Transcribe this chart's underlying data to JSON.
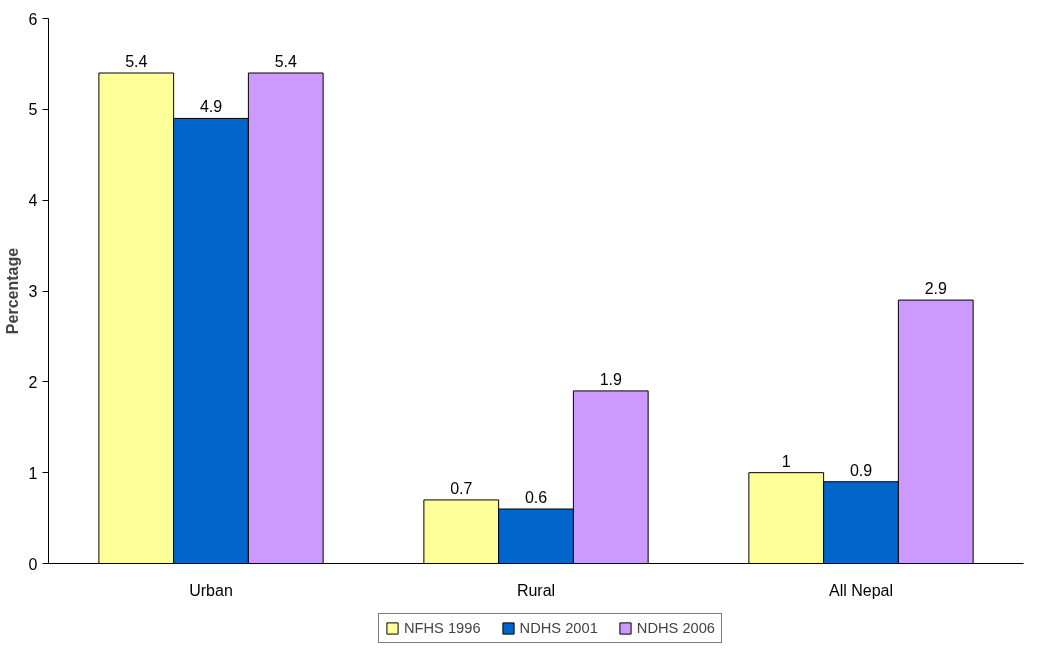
{
  "chart_data": {
    "type": "bar",
    "ylabel": "Percentage",
    "categories": [
      "Urban",
      "Rural",
      "All Nepal"
    ],
    "series": [
      {
        "name": "NFHS 1996",
        "color": "#ffff99",
        "values": [
          5.4,
          0.7,
          1
        ]
      },
      {
        "name": "NDHS 2001",
        "color": "#0066cc",
        "values": [
          4.9,
          0.6,
          0.9
        ]
      },
      {
        "name": "NDHS 2006",
        "color": "#cc99ff",
        "values": [
          5.4,
          1.9,
          2.9
        ]
      }
    ],
    "ylim": [
      0,
      6
    ],
    "yticks": [
      0,
      1,
      2,
      3,
      4,
      5,
      6
    ],
    "grid": false,
    "legend": "bottom",
    "data_labels": true
  }
}
